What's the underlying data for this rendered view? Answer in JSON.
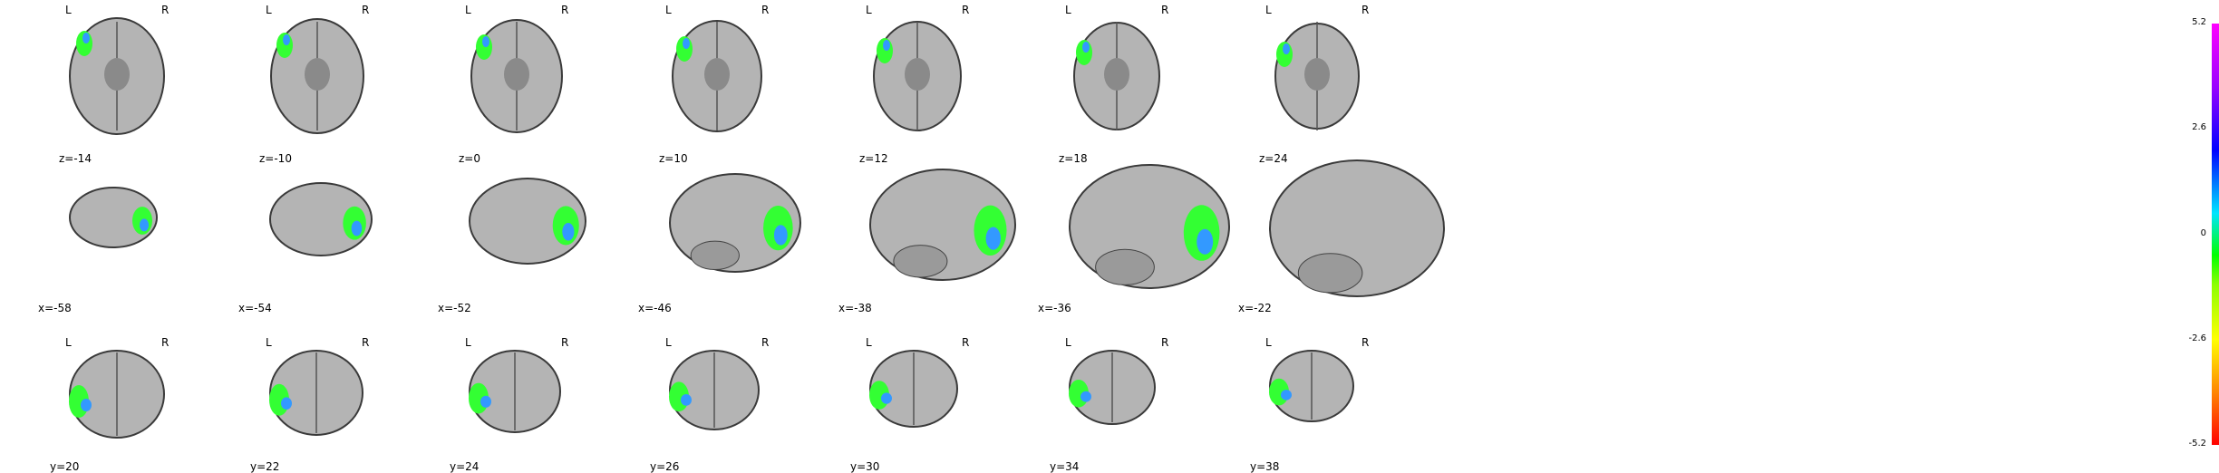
{
  "orientation": {
    "left": "L",
    "right": "R"
  },
  "rows": [
    {
      "plane": "axial",
      "show_lr": true,
      "labels": [
        "z=-14",
        "z=-10",
        "z=0",
        "z=10",
        "z=12",
        "z=18",
        "z=24"
      ]
    },
    {
      "plane": "sagittal",
      "show_lr": false,
      "labels": [
        "x=-58",
        "x=-54",
        "x=-52",
        "x=-46",
        "x=-38",
        "x=-36",
        "x=-22"
      ]
    },
    {
      "plane": "coronal",
      "show_lr": true,
      "labels": [
        "y=20",
        "y=22",
        "y=24",
        "y=26",
        "y=30",
        "y=34",
        "y=38"
      ]
    }
  ],
  "colorbar": {
    "ticks": [
      "5.2",
      "2.6",
      "0",
      "-2.6",
      "-5.2"
    ],
    "colors": [
      "#ff00ff",
      "#0000ff",
      "#00e5ff",
      "#00ff00",
      "#ffff00",
      "#ff0000"
    ]
  },
  "colors": {
    "brain_fill": "#b4b4b4",
    "brain_outline": "#3a3a3a",
    "activation_main": "#33ff33",
    "activation_peak": "#3399ff"
  }
}
